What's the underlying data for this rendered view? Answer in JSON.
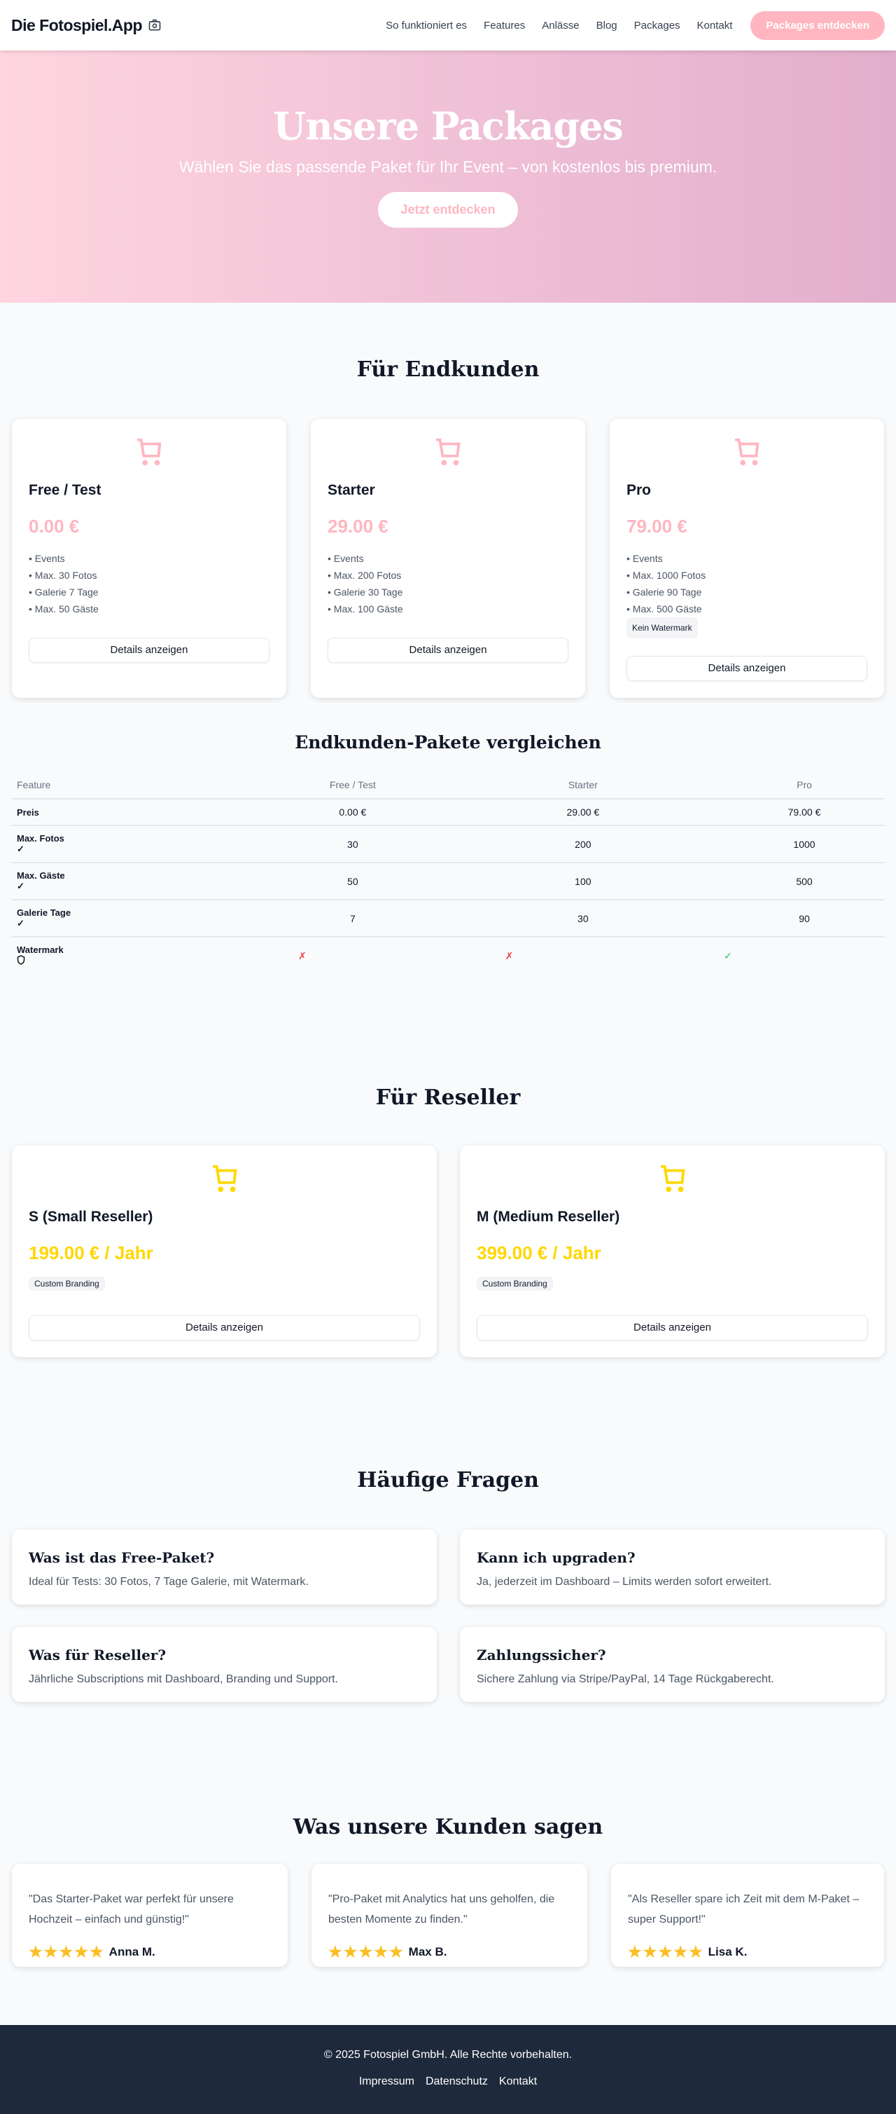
{
  "header": {
    "logo": "Die Fotospiel.App",
    "logo_icon": "camera-icon",
    "nav": [
      "So funktioniert es",
      "Features",
      "Anlässe",
      "Blog",
      "Packages",
      "Kontakt"
    ],
    "cta": "Packages entdecken"
  },
  "hero": {
    "title": "Unsere Packages",
    "subtitle": "Wählen Sie das passende Paket für Ihr Event – von kostenlos bis premium.",
    "button": "Jetzt entdecken"
  },
  "colors": {
    "accent": "#ffb6c1",
    "reseller": "#ffd700",
    "footer": "#1e293b"
  },
  "endkunden": {
    "title": "Für Endkunden",
    "packages": [
      {
        "name": "Free / Test",
        "price": "0.00 €",
        "features": [
          "• Events",
          "• Max. 30 Fotos",
          "• Galerie 7 Tage",
          "• Max. 50 Gäste"
        ],
        "button": "Details anzeigen"
      },
      {
        "name": "Starter",
        "price": "29.00 €",
        "features": [
          "• Events",
          "• Max. 200 Fotos",
          "• Galerie 30 Tage",
          "• Max. 100 Gäste"
        ],
        "button": "Details anzeigen"
      },
      {
        "name": "Pro",
        "price": "79.00 €",
        "features": [
          "• Events",
          "• Max. 1000 Fotos",
          "• Galerie 90 Tage",
          "• Max. 500 Gäste"
        ],
        "badge": "Kein Watermark",
        "button": "Details anzeigen"
      }
    ]
  },
  "compare": {
    "title": "Endkunden-Pakete vergleichen",
    "headers": [
      "Feature",
      "Free / Test",
      "Starter",
      "Pro"
    ],
    "rows": [
      {
        "label": "Preis",
        "values": [
          "0.00 €",
          "29.00 €",
          "79.00 €"
        ]
      },
      {
        "label": "Max. Fotos",
        "icon": "✓",
        "values": [
          "30",
          "200",
          "1000"
        ]
      },
      {
        "label": "Max. Gäste",
        "icon": "✓",
        "values": [
          "50",
          "100",
          "500"
        ]
      },
      {
        "label": "Galerie Tage",
        "icon": "✓",
        "values": [
          "7",
          "30",
          "90"
        ]
      },
      {
        "label": "Watermark",
        "icon": "shield-icon",
        "values": [
          "✗",
          "✗",
          "✓"
        ]
      }
    ]
  },
  "reseller": {
    "title": "Für Reseller",
    "packages": [
      {
        "name": "S (Small Reseller)",
        "price": "199.00 € / Jahr",
        "badge": "Custom Branding",
        "button": "Details anzeigen"
      },
      {
        "name": "M (Medium Reseller)",
        "price": "399.00 € / Jahr",
        "badge": "Custom Branding",
        "button": "Details anzeigen"
      }
    ]
  },
  "faq": {
    "title": "Häufige Fragen",
    "items": [
      {
        "q": "Was ist das Free-Paket?",
        "a": "Ideal für Tests: 30 Fotos, 7 Tage Galerie, mit Watermark."
      },
      {
        "q": "Kann ich upgraden?",
        "a": "Ja, jederzeit im Dashboard – Limits werden sofort erweitert."
      },
      {
        "q": "Was für Reseller?",
        "a": "Jährliche Subscriptions mit Dashboard, Branding und Support."
      },
      {
        "q": "Zahlungssicher?",
        "a": "Sichere Zahlung via Stripe/PayPal, 14 Tage Rückgaberecht."
      }
    ]
  },
  "testimonials": {
    "title": "Was unsere Kunden sagen",
    "items": [
      {
        "quote": "\"Das Starter-Paket war perfekt für unsere Hochzeit – einfach und günstig!\"",
        "name": "Anna M.",
        "rating": 5
      },
      {
        "quote": "\"Pro-Paket mit Analytics hat uns geholfen, die besten Momente zu finden.\"",
        "name": "Max B.",
        "rating": 5
      },
      {
        "quote": "\"Als Reseller spare ich Zeit mit dem M-Paket – super Support!\"",
        "name": "Lisa K.",
        "rating": 5
      }
    ]
  },
  "footer": {
    "copyright": "© 2025 Fotospiel GmbH. Alle Rechte vorbehalten.",
    "links": [
      "Impressum",
      "Datenschutz",
      "Kontakt"
    ]
  }
}
